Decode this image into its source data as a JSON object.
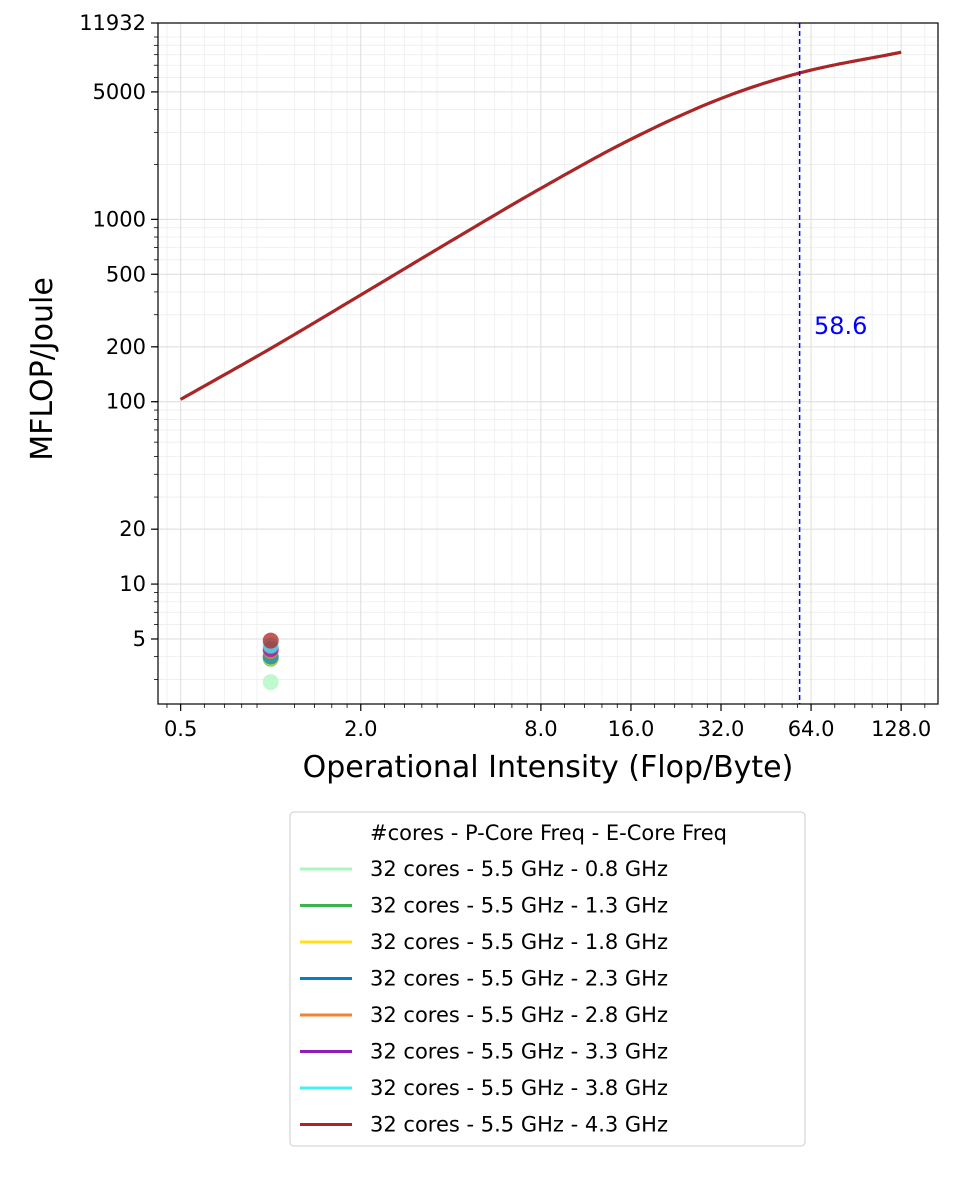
{
  "chart_data": {
    "type": "line",
    "title": "",
    "xlabel": "Operational Intensity (Flop/Byte)",
    "ylabel": "MFLOP/Joule",
    "xscale": "log2",
    "yscale": "log10",
    "xlim": [
      0.42,
      170
    ],
    "ylim": [
      2.2,
      11932
    ],
    "x_ticks": [
      {
        "value": 0.5,
        "label": "0.5"
      },
      {
        "value": 2,
        "label": "2.0"
      },
      {
        "value": 8,
        "label": "8.0"
      },
      {
        "value": 16,
        "label": "16.0"
      },
      {
        "value": 32,
        "label": "32.0"
      },
      {
        "value": 64,
        "label": "64.0"
      },
      {
        "value": 128,
        "label": "128.0"
      }
    ],
    "y_ticks": [
      {
        "value": 5,
        "label": "5"
      },
      {
        "value": 10,
        "label": "10"
      },
      {
        "value": 20,
        "label": "20"
      },
      {
        "value": 100,
        "label": "100"
      },
      {
        "value": 200,
        "label": "200"
      },
      {
        "value": 500,
        "label": "500"
      },
      {
        "value": 1000,
        "label": "1000"
      },
      {
        "value": 5000,
        "label": "5000"
      },
      {
        "value": 11932,
        "label": "11932"
      }
    ],
    "grid": true,
    "legend_placement": "below-center",
    "legend_title": "#cores - P-Core Freq - E-Core Freq",
    "series": [
      {
        "name": "32 cores - 5.5 GHz - 0.8 GHz",
        "color": "#aaf7bd",
        "point": {
          "x": 1.0,
          "y": 2.9
        },
        "line": {
          "x": [
            0.5,
            1,
            2,
            4,
            8,
            16,
            32,
            58.6,
            128
          ],
          "y": [
            103,
            196,
            385,
            760,
            1480,
            2750,
            4600,
            6350,
            8250
          ]
        }
      },
      {
        "name": "32 cores - 5.5 GHz - 1.3 GHz",
        "color": "#3cb44b",
        "point": {
          "x": 1.0,
          "y": 3.9
        },
        "line": {
          "x": [
            0.5,
            1,
            2,
            4,
            8,
            16,
            32,
            58.6,
            128
          ],
          "y": [
            103,
            196,
            385,
            760,
            1480,
            2750,
            4600,
            6350,
            8250
          ]
        }
      },
      {
        "name": "32 cores - 5.5 GHz - 1.8 GHz",
        "color": "#ffe119",
        "point": {
          "x": 1.0,
          "y": 3.95
        },
        "line": {
          "x": [
            0.5,
            1,
            2,
            4,
            8,
            16,
            32,
            58.6,
            128
          ],
          "y": [
            103,
            196,
            385,
            760,
            1480,
            2750,
            4600,
            6350,
            8250
          ]
        }
      },
      {
        "name": "32 cores - 5.5 GHz - 2.3 GHz",
        "color": "#0082c8",
        "point": {
          "x": 1.0,
          "y": 4.0
        },
        "line": {
          "x": [
            0.5,
            1,
            2,
            4,
            8,
            16,
            32,
            58.6,
            128
          ],
          "y": [
            103,
            196,
            385,
            760,
            1480,
            2750,
            4600,
            6350,
            8250
          ]
        }
      },
      {
        "name": "32 cores - 5.5 GHz - 2.8 GHz",
        "color": "#f58231",
        "point": {
          "x": 1.0,
          "y": 4.3
        },
        "line": {
          "x": [
            0.5,
            1,
            2,
            4,
            8,
            16,
            32,
            58.6,
            128
          ],
          "y": [
            103,
            196,
            385,
            760,
            1480,
            2750,
            4600,
            6350,
            8250
          ]
        }
      },
      {
        "name": "32 cores - 5.5 GHz - 3.3 GHz",
        "color": "#911eb4",
        "point": {
          "x": 1.0,
          "y": 4.4
        },
        "line": {
          "x": [
            0.5,
            1,
            2,
            4,
            8,
            16,
            32,
            58.6,
            128
          ],
          "y": [
            103,
            196,
            385,
            760,
            1480,
            2750,
            4600,
            6350,
            8250
          ]
        }
      },
      {
        "name": "32 cores - 5.5 GHz - 3.8 GHz",
        "color": "#46f0f0",
        "point": {
          "x": 1.0,
          "y": 4.6
        },
        "line": {
          "x": [
            0.5,
            1,
            2,
            4,
            8,
            16,
            32,
            58.6,
            128
          ],
          "y": [
            103,
            196,
            385,
            760,
            1480,
            2750,
            4600,
            6350,
            8250
          ]
        }
      },
      {
        "name": "32 cores - 5.5 GHz - 4.3 GHz",
        "color": "#b22222",
        "point": {
          "x": 1.0,
          "y": 4.9
        },
        "line": {
          "x": [
            0.5,
            1,
            2,
            4,
            8,
            16,
            32,
            58.6,
            128
          ],
          "y": [
            103,
            196,
            385,
            760,
            1480,
            2750,
            4600,
            6350,
            8250
          ]
        }
      }
    ],
    "ridge_line": {
      "x": 58.6,
      "label": "58.6",
      "color": "#0000ff",
      "style": "dashed"
    }
  }
}
